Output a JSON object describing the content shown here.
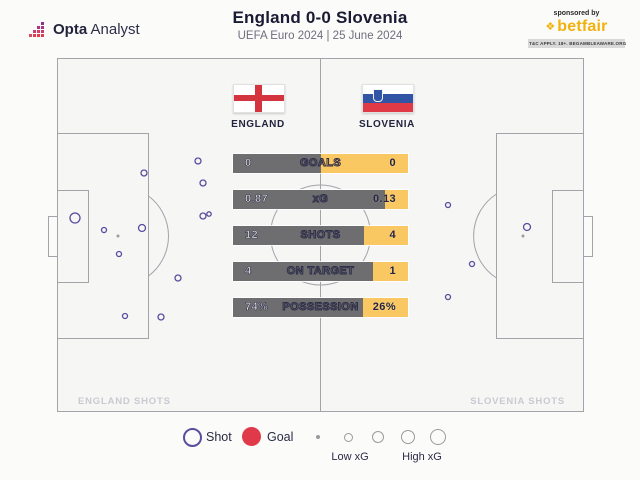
{
  "header": {
    "logo": {
      "brand_bold": "Opta",
      "brand_light": "Analyst"
    },
    "title": "England 0-0 Slovenia",
    "subtitle": "UEFA Euro 2024 | 25 June 2024",
    "sponsor": {
      "pre": "sponsored by",
      "name": "betfair",
      "disclaimer": "T&C APPLY. 18+. BEGAMBLEAWARE.ORG"
    }
  },
  "teams": {
    "home": {
      "name": "ENGLAND"
    },
    "away": {
      "name": "SLOVENIA"
    }
  },
  "pitch": {
    "home_corner_label": "ENGLAND SHOTS",
    "away_corner_label": "SLOVENIA SHOTS"
  },
  "legend": {
    "shot_label": "Shot",
    "goal_label": "Goal",
    "low_label": "Low xG",
    "high_label": "High xG"
  },
  "colors": {
    "shot_purple": "#5c4b9e",
    "goal_red": "#e0394a",
    "bar_grey": "#6e6e70",
    "bar_yellow": "#fac863",
    "betfair_yellow": "#f2b20d",
    "navy_text": "#23233e",
    "pitch_line": "#a3a3ab"
  },
  "chart_data": [
    {
      "type": "bar",
      "title": "Match stats comparison (England vs Slovenia)",
      "categories": [
        "GOALS",
        "xG",
        "SHOTS",
        "ON TARGET",
        "POSSESSION"
      ],
      "series": [
        {
          "name": "ENGLAND",
          "values": [
            0,
            0.87,
            12,
            4,
            74
          ]
        },
        {
          "name": "SLOVENIA",
          "values": [
            0,
            0.13,
            4,
            1,
            26
          ]
        }
      ],
      "value_labels": [
        [
          "0",
          "0"
        ],
        [
          "0.87",
          "0.13"
        ],
        [
          "12",
          "4"
        ],
        [
          "4",
          "1"
        ],
        [
          "74%",
          "26%"
        ]
      ],
      "home_share_pct": [
        50,
        87,
        75,
        80,
        74
      ],
      "orientation": "horizontal-split",
      "legend_position": "none"
    },
    {
      "type": "scatter",
      "title": "Shot map (marker size = xG, hollow = shot, filled red = goal)",
      "x_range": [
        57,
        584
      ],
      "y_range": [
        58,
        412
      ],
      "series": [
        {
          "name": "England shots",
          "marker": "circle-outline",
          "color": "#5c4b9e",
          "points": [
            {
              "x": 144,
              "y": 173,
              "r": 3
            },
            {
              "x": 198,
              "y": 161,
              "r": 3
            },
            {
              "x": 203,
              "y": 183,
              "r": 3
            },
            {
              "x": 75,
              "y": 218,
              "r": 5
            },
            {
              "x": 104,
              "y": 230,
              "r": 2.5
            },
            {
              "x": 142,
              "y": 228,
              "r": 3.5
            },
            {
              "x": 119,
              "y": 254,
              "r": 2.5
            },
            {
              "x": 203,
              "y": 216,
              "r": 3
            },
            {
              "x": 209,
              "y": 214,
              "r": 2.2
            },
            {
              "x": 178,
              "y": 278,
              "r": 3
            },
            {
              "x": 125,
              "y": 316,
              "r": 2.5
            },
            {
              "x": 161,
              "y": 317,
              "r": 3
            }
          ]
        },
        {
          "name": "Slovenia shots",
          "marker": "circle-outline",
          "color": "#5c4b9e",
          "points": [
            {
              "x": 448,
              "y": 205,
              "r": 2.5
            },
            {
              "x": 527,
              "y": 227,
              "r": 3.5
            },
            {
              "x": 472,
              "y": 264,
              "r": 2.5
            },
            {
              "x": 448,
              "y": 297,
              "r": 2.5
            }
          ]
        }
      ]
    }
  ]
}
